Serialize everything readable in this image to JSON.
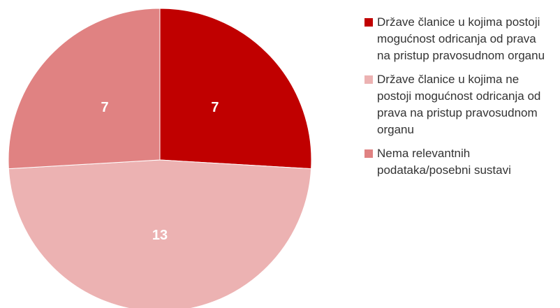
{
  "chart_data": {
    "type": "pie",
    "categories": [
      "Države članice u kojima postoji mogućnost odricanja od prava na pristup pravosudnom organu",
      "Države članice u kojima ne postoji mogućnost odricanja od prava na pristup pravosudnom organu",
      "Nema relevantnih podataka/posebni sustavi"
    ],
    "values": [
      7,
      13,
      7
    ],
    "colors": [
      "#c00000",
      "#ecb2b2",
      "#e08282"
    ],
    "legend": "right"
  }
}
